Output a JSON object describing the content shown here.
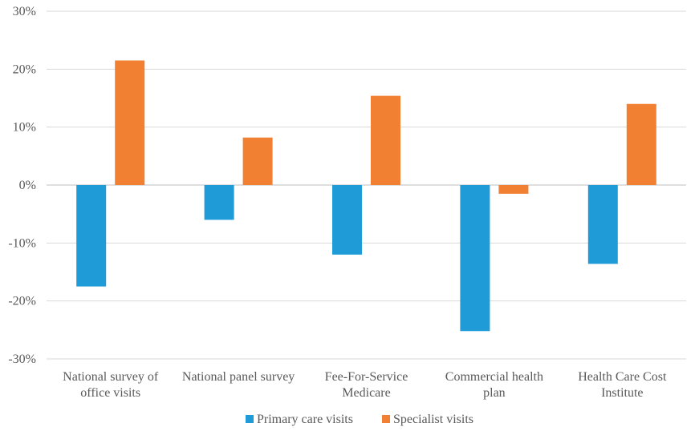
{
  "chart_data": {
    "type": "bar",
    "categories": [
      [
        "National survey of",
        "office visits"
      ],
      [
        "National panel survey"
      ],
      [
        "Fee-For-Service",
        "Medicare"
      ],
      [
        "Commercial health",
        "plan"
      ],
      [
        "Health Care Cost",
        "Institute"
      ]
    ],
    "series": [
      {
        "name": "Primary care visits",
        "color": "#1f9bd7",
        "values": [
          -17.5,
          -6.0,
          -12.0,
          -25.2,
          -13.6
        ]
      },
      {
        "name": "Specialist visits",
        "color": "#f28033",
        "values": [
          21.5,
          8.2,
          15.4,
          -1.5,
          14.0
        ]
      }
    ],
    "ylim": [
      -30,
      30
    ],
    "yticks": [
      30,
      20,
      10,
      0,
      -10,
      -20,
      -30
    ],
    "ytick_labels": [
      "30%",
      "20%",
      "10%",
      "0%",
      "-10%",
      "-20%",
      "-30%"
    ],
    "grid": true,
    "legend_position": "bottom",
    "title": "",
    "xlabel": "",
    "ylabel": ""
  }
}
